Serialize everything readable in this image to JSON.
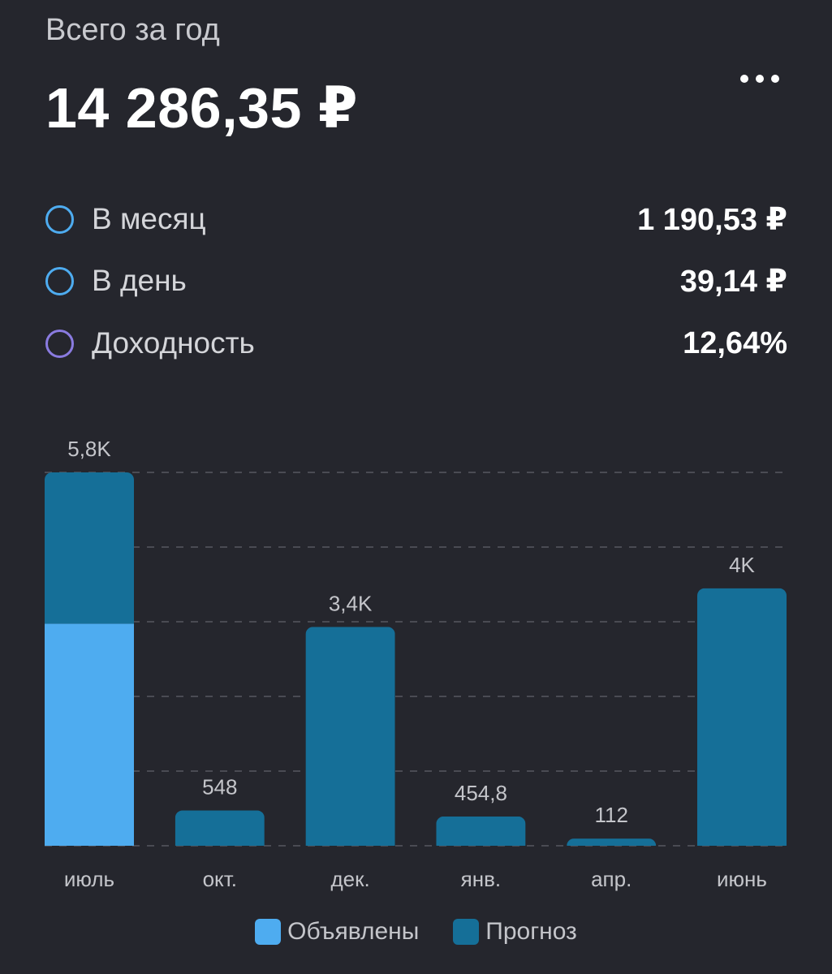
{
  "header": {
    "title": "Всего за год",
    "total": "14 286,35 ₽",
    "more_icon": "more-horizontal-icon"
  },
  "stats": [
    {
      "label": "В месяц",
      "value": "1 190,53 ₽",
      "ring_color": "#4eacf0"
    },
    {
      "label": "В день",
      "value": "39,14 ₽",
      "ring_color": "#4eacf0"
    },
    {
      "label": "Доходность",
      "value": "12,64%",
      "ring_color": "#8a7be0"
    }
  ],
  "chart_data": {
    "type": "bar",
    "stacked": true,
    "categories": [
      "июль",
      "окт.",
      "дек.",
      "янв.",
      "апр.",
      "июнь"
    ],
    "series": [
      {
        "name": "Объявлены",
        "color": "#4eacf0",
        "values": [
          3450,
          0,
          0,
          0,
          0,
          0
        ]
      },
      {
        "name": "Прогноз",
        "color": "#156f98",
        "values": [
          2350,
          548,
          3400,
          454.8,
          112,
          4000
        ]
      }
    ],
    "total_labels": [
      "5,8K",
      "548",
      "3,4K",
      "454,8",
      "112",
      "4K"
    ],
    "ylim": [
      0,
      5800
    ],
    "grid": true,
    "legend_position": "bottom-center"
  }
}
